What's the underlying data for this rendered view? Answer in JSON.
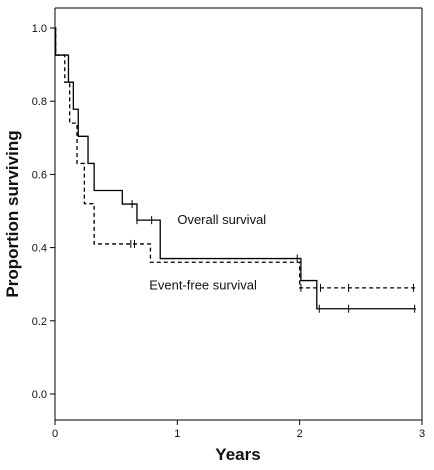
{
  "chart_data": {
    "type": "line",
    "title": "",
    "xlabel": "Years",
    "ylabel": "Proportion surviving",
    "xlim": [
      0,
      3
    ],
    "ylim": [
      0,
      1
    ],
    "grid": false,
    "legend": "none",
    "x_ticks": [
      {
        "value": 0,
        "label": "0"
      },
      {
        "value": 1,
        "label": "1"
      },
      {
        "value": 2,
        "label": "2"
      },
      {
        "value": 3,
        "label": "3"
      }
    ],
    "y_ticks": [
      {
        "value": 0,
        "label": "0.0"
      },
      {
        "value": 0.2,
        "label": "0.2"
      },
      {
        "value": 0.4,
        "label": "0.4"
      },
      {
        "value": 0.6,
        "label": "0.6"
      },
      {
        "value": 0.8,
        "label": "0.8"
      },
      {
        "value": 1.0,
        "label": "1.0"
      }
    ],
    "annotations": [
      {
        "text": "Overall survival",
        "x": 1.0,
        "y": 0.465
      },
      {
        "text": "Event-free survival",
        "x": 0.77,
        "y": 0.285
      }
    ],
    "series": [
      {
        "name": "Overall survival",
        "style": "solid",
        "color": "#000000",
        "steps": [
          {
            "x": 0.0,
            "y": 1.0
          },
          {
            "x": 0.005,
            "y": 0.926
          },
          {
            "x": 0.11,
            "y": 0.852
          },
          {
            "x": 0.15,
            "y": 0.778
          },
          {
            "x": 0.19,
            "y": 0.704
          },
          {
            "x": 0.27,
            "y": 0.63
          },
          {
            "x": 0.32,
            "y": 0.556
          },
          {
            "x": 0.55,
            "y": 0.519
          },
          {
            "x": 0.67,
            "y": 0.475
          },
          {
            "x": 0.86,
            "y": 0.37
          },
          {
            "x": 2.01,
            "y": 0.31
          },
          {
            "x": 2.14,
            "y": 0.233
          },
          {
            "x": 2.95,
            "y": 0.233
          }
        ],
        "censored": [
          0.63,
          0.67,
          0.79,
          1.98,
          2.16,
          2.4,
          2.94
        ]
      },
      {
        "name": "Event-free survival",
        "style": "dashed",
        "color": "#000000",
        "steps": [
          {
            "x": 0.0,
            "y": 1.0
          },
          {
            "x": 0.005,
            "y": 0.926
          },
          {
            "x": 0.08,
            "y": 0.852
          },
          {
            "x": 0.12,
            "y": 0.74
          },
          {
            "x": 0.18,
            "y": 0.63
          },
          {
            "x": 0.24,
            "y": 0.52
          },
          {
            "x": 0.32,
            "y": 0.41
          },
          {
            "x": 0.78,
            "y": 0.36
          },
          {
            "x": 2.0,
            "y": 0.29
          },
          {
            "x": 2.95,
            "y": 0.29
          }
        ],
        "censored": [
          0.62,
          0.65,
          2.01,
          2.17,
          2.4,
          2.93
        ]
      }
    ]
  }
}
